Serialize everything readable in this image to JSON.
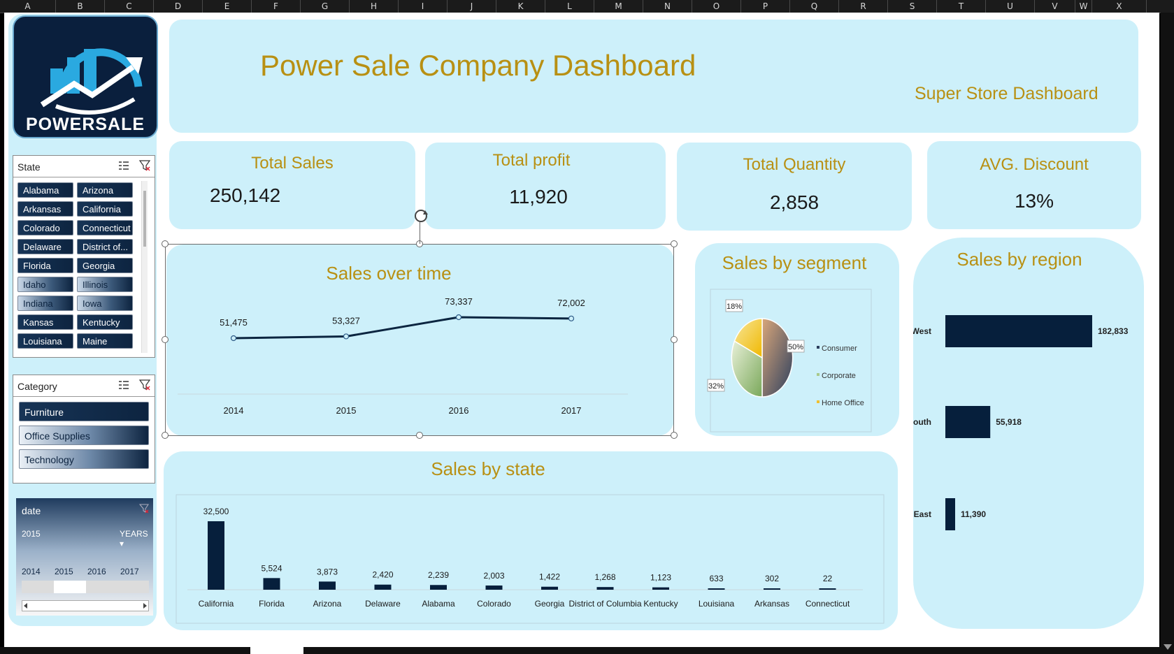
{
  "column_headers": [
    "A",
    "B",
    "C",
    "D",
    "E",
    "F",
    "G",
    "H",
    "I",
    "J",
    "K",
    "L",
    "M",
    "N",
    "O",
    "P",
    "Q",
    "R",
    "S",
    "T",
    "U",
    "V",
    "W",
    "X"
  ],
  "logo": {
    "text": "POWERSALE"
  },
  "header": {
    "title": "Power Sale Company Dashboard",
    "subtitle": "Super Store Dashboard"
  },
  "kpis": {
    "total_sales": {
      "label": "Total Sales",
      "value": "250,142"
    },
    "total_profit": {
      "label": "Total profit",
      "value": "11,920"
    },
    "total_quantity": {
      "label": "Total Quantity",
      "value": "2,858"
    },
    "avg_discount": {
      "label": "AVG. Discount",
      "value": "13%"
    }
  },
  "state_slicer": {
    "title": "State",
    "items": [
      "Alabama",
      "Arizona",
      "Arkansas",
      "California",
      "Colorado",
      "Connecticut",
      "Delaware",
      "District of...",
      "Florida",
      "Georgia",
      "Idaho",
      "Illinois",
      "Indiana",
      "Iowa",
      "Kansas",
      "Kentucky",
      "Louisiana",
      "Maine"
    ]
  },
  "category_slicer": {
    "title": "Category",
    "items": [
      "Furniture",
      "Office Supplies",
      "Technology"
    ]
  },
  "timeline": {
    "title": "date",
    "selected": "2015",
    "level": "YEARS",
    "years": [
      "2014",
      "2015",
      "2016",
      "2017"
    ]
  },
  "colors": {
    "gold": "#b89013",
    "navy": "#0a1f3d",
    "panel": "#cdf0fa"
  },
  "chart_data": [
    {
      "type": "line",
      "title": "Sales over time",
      "x": [
        "2014",
        "2015",
        "2016",
        "2017"
      ],
      "values": [
        51475,
        53327,
        73337,
        72002
      ],
      "labels": [
        "51,475",
        "53,327",
        "73,337",
        "72,002"
      ],
      "ylim": [
        0,
        100000
      ]
    },
    {
      "type": "pie",
      "title": "Sales by segment",
      "categories": [
        "Consumer",
        "Corporate",
        "Home Office"
      ],
      "values": [
        50,
        32,
        18
      ],
      "labels": [
        "50%",
        "32%",
        "18%"
      ],
      "legend": "right"
    },
    {
      "type": "bar",
      "orientation": "horizontal",
      "title": "Sales by region",
      "categories": [
        "West",
        "South",
        "East"
      ],
      "values": [
        182833,
        55918,
        11390
      ],
      "labels": [
        "182,833",
        "55,918",
        "11,390"
      ]
    },
    {
      "type": "bar",
      "title": "Sales by state",
      "categories": [
        "California",
        "Florida",
        "Arizona",
        "Delaware",
        "Alabama",
        "Colorado",
        "Georgia",
        "District of Columbia",
        "Kentucky",
        "Louisiana",
        "Arkansas",
        "Connecticut"
      ],
      "values": [
        32500,
        5524,
        3873,
        2420,
        2239,
        2003,
        1422,
        1268,
        1123,
        633,
        302,
        22
      ],
      "labels": [
        "32,500",
        "5,524",
        "3,873",
        "2,420",
        "2,239",
        "2,003",
        "1,422",
        "1,268",
        "1,123",
        "633",
        "302",
        "22"
      ]
    }
  ]
}
